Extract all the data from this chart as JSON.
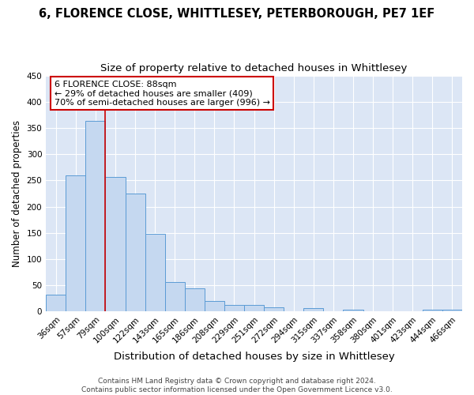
{
  "title": "6, FLORENCE CLOSE, WHITTLESEY, PETERBOROUGH, PE7 1EF",
  "subtitle": "Size of property relative to detached houses in Whittlesey",
  "xlabel": "Distribution of detached houses by size in Whittlesey",
  "ylabel": "Number of detached properties",
  "categories": [
    "36sqm",
    "57sqm",
    "79sqm",
    "100sqm",
    "122sqm",
    "143sqm",
    "165sqm",
    "186sqm",
    "208sqm",
    "229sqm",
    "251sqm",
    "272sqm",
    "294sqm",
    "315sqm",
    "337sqm",
    "358sqm",
    "380sqm",
    "401sqm",
    "423sqm",
    "444sqm",
    "466sqm"
  ],
  "values": [
    33,
    260,
    363,
    256,
    225,
    148,
    57,
    45,
    20,
    12,
    12,
    8,
    0,
    6,
    0,
    4,
    0,
    0,
    0,
    4,
    3
  ],
  "bar_color": "#c5d8f0",
  "bar_edge_color": "#5b9bd5",
  "fig_background_color": "#ffffff",
  "plot_background_color": "#dce6f5",
  "grid_color": "#ffffff",
  "redline_x": 2.5,
  "annotation_line1": "6 FLORENCE CLOSE: 88sqm",
  "annotation_line2": "← 29% of detached houses are smaller (409)",
  "annotation_line3": "70% of semi-detached houses are larger (996) →",
  "annotation_box_color": "#ffffff",
  "annotation_box_edge_color": "#cc0000",
  "footnote": "Contains HM Land Registry data © Crown copyright and database right 2024.\nContains public sector information licensed under the Open Government Licence v3.0.",
  "ylim": [
    0,
    450
  ],
  "title_fontsize": 10.5,
  "subtitle_fontsize": 9.5,
  "xlabel_fontsize": 9.5,
  "ylabel_fontsize": 8.5,
  "tick_fontsize": 7.5,
  "annotation_fontsize": 8,
  "footnote_fontsize": 6.5
}
